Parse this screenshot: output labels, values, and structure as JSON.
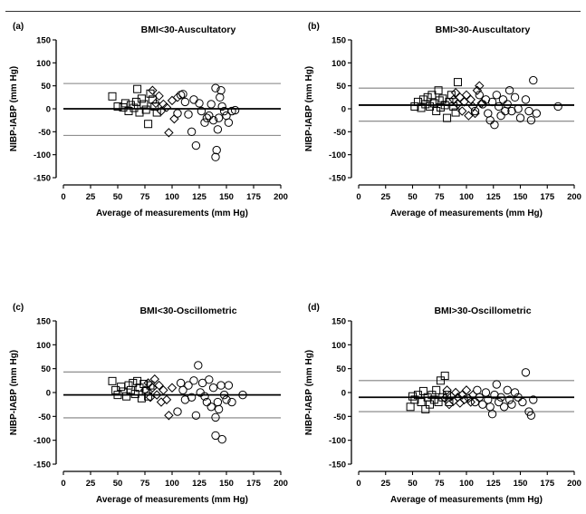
{
  "figure": {
    "line_color": "#000000",
    "limit_line_color": "#808080"
  },
  "chart_data": [
    {
      "type": "scatter",
      "panel_label": "(a)",
      "title": "BMI<30-Auscultatory",
      "xlabel": "Average of measurements (mm Hg)",
      "ylabel": "NIBP-IABP (mm Hg)",
      "xlim": [
        0,
        200
      ],
      "ylim": [
        -150,
        150
      ],
      "xticks": [
        0,
        25,
        50,
        75,
        100,
        125,
        150,
        175,
        200
      ],
      "yticks": [
        150,
        100,
        50,
        0,
        -50,
        -100,
        -150
      ],
      "x_tick_labels": [
        "0",
        "25",
        "50",
        "75",
        "100",
        "125",
        "150",
        "175",
        "200"
      ],
      "y_tick_labels": [
        "150",
        "100",
        "50",
        "0",
        "-50",
        "-100",
        "-150"
      ],
      "bias": 0,
      "upper_limit": 55,
      "lower_limit": -58,
      "series": [
        {
          "marker": "square",
          "points": [
            [
              45,
              27
            ],
            [
              50,
              5
            ],
            [
              55,
              3
            ],
            [
              57,
              12
            ],
            [
              60,
              -5
            ],
            [
              62,
              8
            ],
            [
              65,
              2
            ],
            [
              67,
              15
            ],
            [
              68,
              43
            ],
            [
              70,
              -8
            ],
            [
              72,
              22
            ],
            [
              74,
              10
            ],
            [
              76,
              -2
            ],
            [
              78,
              -33
            ],
            [
              80,
              33
            ],
            [
              82,
              20
            ],
            [
              84,
              5
            ],
            [
              86,
              -8
            ]
          ]
        },
        {
          "marker": "diamond",
          "points": [
            [
              82,
              40
            ],
            [
              85,
              12
            ],
            [
              88,
              28
            ],
            [
              90,
              -5
            ],
            [
              92,
              10
            ],
            [
              95,
              3
            ],
            [
              97,
              -52
            ],
            [
              100,
              18
            ],
            [
              102,
              -22
            ],
            [
              105,
              25
            ]
          ]
        },
        {
          "marker": "circle",
          "points": [
            [
              105,
              -10
            ],
            [
              108,
              30
            ],
            [
              110,
              32
            ],
            [
              112,
              15
            ],
            [
              115,
              -12
            ],
            [
              118,
              -50
            ],
            [
              120,
              20
            ],
            [
              122,
              -80
            ],
            [
              125,
              12
            ],
            [
              127,
              -5
            ],
            [
              130,
              -30
            ],
            [
              132,
              -20
            ],
            [
              134,
              -15
            ],
            [
              136,
              10
            ],
            [
              138,
              -25
            ],
            [
              140,
              45
            ],
            [
              140,
              -105
            ],
            [
              141,
              -90
            ],
            [
              142,
              -45
            ],
            [
              143,
              -20
            ],
            [
              144,
              25
            ],
            [
              145,
              40
            ],
            [
              146,
              5
            ],
            [
              148,
              -5
            ],
            [
              150,
              -15
            ],
            [
              152,
              -30
            ],
            [
              155,
              -5
            ],
            [
              158,
              -3
            ]
          ]
        }
      ]
    },
    {
      "type": "scatter",
      "panel_label": "(b)",
      "title": "BMI>30-Auscultatory",
      "xlabel": "Average of measurements (mm Hg)",
      "ylabel": "NIBP-IABP (mm Hg)",
      "xlim": [
        0,
        200
      ],
      "ylim": [
        -150,
        150
      ],
      "xticks": [
        0,
        25,
        50,
        75,
        100,
        125,
        150,
        175,
        200
      ],
      "yticks": [
        150,
        100,
        50,
        0,
        -50,
        -100,
        -150
      ],
      "x_tick_labels": [
        "0",
        "25",
        "50",
        "75",
        "100",
        "125",
        "150",
        "175",
        "200"
      ],
      "y_tick_labels": [
        "150",
        "100",
        "50",
        "0",
        "-50",
        "-100",
        "-150"
      ],
      "bias": 8,
      "upper_limit": 45,
      "lower_limit": -27,
      "series": [
        {
          "marker": "square",
          "points": [
            [
              52,
              5
            ],
            [
              55,
              15
            ],
            [
              58,
              2
            ],
            [
              60,
              20
            ],
            [
              62,
              10
            ],
            [
              64,
              25
            ],
            [
              66,
              5
            ],
            [
              68,
              30
            ],
            [
              70,
              12
            ],
            [
              72,
              -5
            ],
            [
              74,
              40
            ],
            [
              75,
              18
            ],
            [
              76,
              3
            ],
            [
              78,
              22
            ],
            [
              80,
              8
            ],
            [
              82,
              -20
            ],
            [
              84,
              15
            ],
            [
              86,
              30
            ],
            [
              88,
              5
            ],
            [
              90,
              -8
            ],
            [
              92,
              58
            ]
          ]
        },
        {
          "marker": "diamond",
          "points": [
            [
              88,
              20
            ],
            [
              90,
              35
            ],
            [
              92,
              10
            ],
            [
              94,
              25
            ],
            [
              96,
              -5
            ],
            [
              98,
              15
            ],
            [
              100,
              30
            ],
            [
              102,
              -15
            ],
            [
              104,
              20
            ],
            [
              106,
              5
            ],
            [
              108,
              -10
            ],
            [
              110,
              40
            ],
            [
              112,
              50
            ],
            [
              114,
              12
            ]
          ]
        },
        {
          "marker": "circle",
          "points": [
            [
              108,
              -5
            ],
            [
              112,
              30
            ],
            [
              115,
              10
            ],
            [
              118,
              20
            ],
            [
              120,
              -10
            ],
            [
              122,
              -25
            ],
            [
              124,
              15
            ],
            [
              126,
              -35
            ],
            [
              128,
              30
            ],
            [
              130,
              5
            ],
            [
              132,
              -15
            ],
            [
              134,
              20
            ],
            [
              136,
              -5
            ],
            [
              138,
              10
            ],
            [
              140,
              40
            ],
            [
              142,
              -5
            ],
            [
              145,
              25
            ],
            [
              148,
              0
            ],
            [
              150,
              -20
            ],
            [
              155,
              20
            ],
            [
              158,
              -5
            ],
            [
              160,
              -25
            ],
            [
              162,
              62
            ],
            [
              165,
              -10
            ],
            [
              185,
              5
            ]
          ]
        }
      ]
    },
    {
      "type": "scatter",
      "panel_label": "(c)",
      "title": "BMI<30-Oscillometric",
      "xlabel": "Average of measurements (mm Hg)",
      "ylabel": "NIBP-IABP (mm Hg)",
      "xlim": [
        0,
        200
      ],
      "ylim": [
        -150,
        150
      ],
      "xticks": [
        0,
        25,
        50,
        75,
        100,
        125,
        150,
        175,
        200
      ],
      "yticks": [
        150,
        100,
        50,
        0,
        -50,
        -100,
        -150
      ],
      "x_tick_labels": [
        "0",
        "25",
        "50",
        "75",
        "100",
        "125",
        "150",
        "175",
        "200"
      ],
      "y_tick_labels": [
        "150",
        "100",
        "50",
        "0",
        "-50",
        "-100",
        "-150"
      ],
      "bias": -5,
      "upper_limit": 43,
      "lower_limit": -53,
      "series": [
        {
          "marker": "square",
          "points": [
            [
              45,
              24
            ],
            [
              48,
              5
            ],
            [
              50,
              -5
            ],
            [
              53,
              12
            ],
            [
              55,
              2
            ],
            [
              58,
              -8
            ],
            [
              60,
              15
            ],
            [
              62,
              5
            ],
            [
              64,
              20
            ],
            [
              66,
              -3
            ],
            [
              68,
              24
            ],
            [
              70,
              10
            ],
            [
              72,
              -12
            ],
            [
              74,
              18
            ],
            [
              76,
              3
            ],
            [
              78,
              -8
            ],
            [
              80,
              15
            ]
          ]
        },
        {
          "marker": "diamond",
          "points": [
            [
              75,
              5
            ],
            [
              78,
              20
            ],
            [
              80,
              -10
            ],
            [
              82,
              10
            ],
            [
              84,
              28
            ],
            [
              86,
              -5
            ],
            [
              88,
              15
            ],
            [
              90,
              -20
            ],
            [
              92,
              5
            ],
            [
              95,
              -15
            ],
            [
              97,
              -48
            ],
            [
              100,
              10
            ]
          ]
        },
        {
          "marker": "circle",
          "points": [
            [
              105,
              -40
            ],
            [
              108,
              20
            ],
            [
              110,
              5
            ],
            [
              112,
              -15
            ],
            [
              115,
              15
            ],
            [
              118,
              -10
            ],
            [
              120,
              25
            ],
            [
              122,
              -48
            ],
            [
              124,
              57
            ],
            [
              126,
              0
            ],
            [
              128,
              20
            ],
            [
              130,
              -8
            ],
            [
              132,
              -20
            ],
            [
              134,
              27
            ],
            [
              136,
              -30
            ],
            [
              138,
              10
            ],
            [
              140,
              -52
            ],
            [
              140,
              -90
            ],
            [
              142,
              -20
            ],
            [
              143,
              -35
            ],
            [
              145,
              15
            ],
            [
              146,
              -98
            ],
            [
              148,
              -5
            ],
            [
              150,
              -15
            ],
            [
              152,
              15
            ],
            [
              155,
              -20
            ],
            [
              165,
              -5
            ]
          ]
        }
      ]
    },
    {
      "type": "scatter",
      "panel_label": "(d)",
      "title": "BMI>30-Oscillometric",
      "xlabel": "Average of measurements (mm Hg)",
      "ylabel": "NIBP-IABP (mm Hg)",
      "xlim": [
        0,
        200
      ],
      "ylim": [
        -150,
        150
      ],
      "xticks": [
        0,
        25,
        50,
        75,
        100,
        125,
        150,
        175,
        200
      ],
      "yticks": [
        150,
        100,
        50,
        0,
        -50,
        -100,
        -150
      ],
      "x_tick_labels": [
        "0",
        "25",
        "50",
        "75",
        "100",
        "125",
        "150",
        "175",
        "200"
      ],
      "y_tick_labels": [
        "150",
        "100",
        "50",
        "0",
        "-50",
        "-100",
        "-150"
      ],
      "bias": -10,
      "upper_limit": 25,
      "lower_limit": -40,
      "series": [
        {
          "marker": "square",
          "points": [
            [
              48,
              -30
            ],
            [
              50,
              -8
            ],
            [
              52,
              -15
            ],
            [
              55,
              -5
            ],
            [
              58,
              -20
            ],
            [
              60,
              3
            ],
            [
              62,
              -35
            ],
            [
              64,
              -10
            ],
            [
              66,
              -25
            ],
            [
              68,
              -5
            ],
            [
              70,
              -15
            ],
            [
              72,
              5
            ],
            [
              74,
              -20
            ],
            [
              76,
              25
            ],
            [
              78,
              -10
            ],
            [
              80,
              35
            ],
            [
              82,
              -5
            ],
            [
              84,
              -20
            ]
          ]
        },
        {
          "marker": "diamond",
          "points": [
            [
              80,
              -12
            ],
            [
              82,
              5
            ],
            [
              84,
              -25
            ],
            [
              86,
              -8
            ],
            [
              88,
              -18
            ],
            [
              90,
              0
            ],
            [
              92,
              -10
            ],
            [
              94,
              -22
            ],
            [
              96,
              -5
            ],
            [
              98,
              -15
            ],
            [
              100,
              5
            ],
            [
              102,
              -12
            ],
            [
              104,
              -20
            ],
            [
              106,
              -5
            ]
          ]
        },
        {
          "marker": "circle",
          "points": [
            [
              108,
              -20
            ],
            [
              110,
              5
            ],
            [
              112,
              -10
            ],
            [
              115,
              -25
            ],
            [
              118,
              0
            ],
            [
              120,
              -15
            ],
            [
              122,
              -30
            ],
            [
              124,
              -45
            ],
            [
              126,
              -5
            ],
            [
              128,
              17
            ],
            [
              130,
              -20
            ],
            [
              132,
              -10
            ],
            [
              135,
              -30
            ],
            [
              138,
              5
            ],
            [
              140,
              -15
            ],
            [
              142,
              -25
            ],
            [
              145,
              0
            ],
            [
              148,
              -10
            ],
            [
              152,
              -20
            ],
            [
              155,
              42
            ],
            [
              158,
              -40
            ],
            [
              160,
              -48
            ],
            [
              162,
              -15
            ]
          ]
        }
      ]
    }
  ]
}
